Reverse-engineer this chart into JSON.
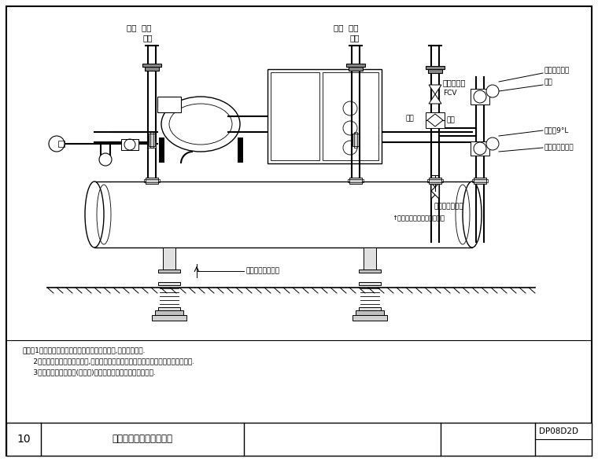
{
  "title": "冰水主機水管安裝示意圖",
  "drawing_number": "DP08D2D",
  "sheet_number": "10",
  "bg_color": "#ffffff",
  "line_color": "#000000",
  "notes": [
    "附注：1、本图冰水主機之外形為離心式冰水主機,其外形供参考.",
    "     2、任何型式和類之冰水主機,其主要水管均包含冰水進、出水管及冷卻水進、出水管.",
    "     3、在冰水及冷卻水管(共四處)均設置支撐架各條皮整避震裝置."
  ],
  "figsize": [
    7.6,
    5.88
  ],
  "dpi": 100
}
